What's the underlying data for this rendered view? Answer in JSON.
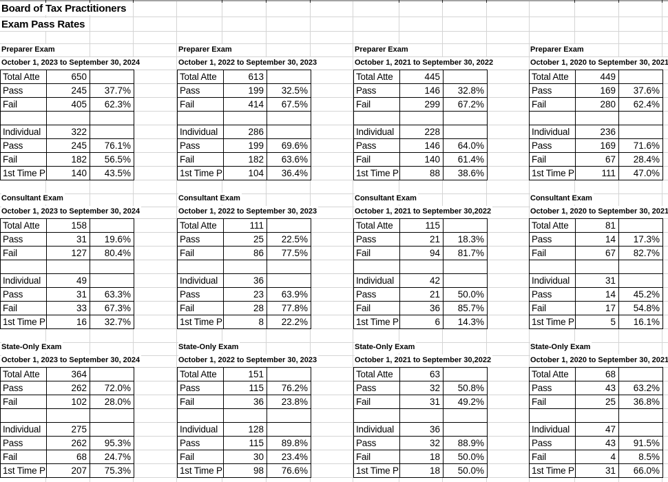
{
  "sheet_title": {
    "line1": "Board of Tax Practitioners",
    "line2": "Exam Pass Rates"
  },
  "colors": {
    "background": "#ffffff",
    "gridline": "#d4d4d4",
    "table_border": "#000000",
    "text": "#000000",
    "top_edge": "#a3a3a3"
  },
  "sections": [
    {
      "exam": "Preparer Exam",
      "period": "October 1, 2023 to September 30, 2024",
      "rows": [
        [
          "Total Atte",
          "650",
          ""
        ],
        [
          "Pass",
          "245",
          "37.7%"
        ],
        [
          "Fail",
          "405",
          "62.3%"
        ],
        [
          "",
          "",
          ""
        ],
        [
          "Individual",
          "322",
          ""
        ],
        [
          "Pass",
          "245",
          "76.1%"
        ],
        [
          "Fail",
          "182",
          "56.5%"
        ],
        [
          "1st Time P",
          "140",
          "43.5%"
        ]
      ]
    },
    {
      "exam": "Preparer Exam",
      "period": "October 1, 2022 to September 30, 2023",
      "rows": [
        [
          "Total Atte",
          "613",
          ""
        ],
        [
          "Pass",
          "199",
          "32.5%"
        ],
        [
          "Fail",
          "414",
          "67.5%"
        ],
        [
          "",
          "",
          ""
        ],
        [
          "Individual",
          "286",
          ""
        ],
        [
          "Pass",
          "199",
          "69.6%"
        ],
        [
          "Fail",
          "182",
          "63.6%"
        ],
        [
          "1st Time P",
          "104",
          "36.4%"
        ]
      ]
    },
    {
      "exam": "Preparer Exam",
      "period": "October 1, 2021 to September 30, 2022",
      "rows": [
        [
          "Total Atte",
          "445",
          ""
        ],
        [
          "Pass",
          "146",
          "32.8%"
        ],
        [
          "Fail",
          "299",
          "67.2%"
        ],
        [
          "",
          "",
          ""
        ],
        [
          "Individual",
          "228",
          ""
        ],
        [
          "Pass",
          "146",
          "64.0%"
        ],
        [
          "Fail",
          "140",
          "61.4%"
        ],
        [
          "1st Time P",
          "88",
          "38.6%"
        ]
      ]
    },
    {
      "exam": "Preparer Exam",
      "period": "October 1, 2020 to September 30, 2021",
      "rows": [
        [
          "Total Atte",
          "449",
          ""
        ],
        [
          "Pass",
          "169",
          "37.6%"
        ],
        [
          "Fail",
          "280",
          "62.4%"
        ],
        [
          "",
          "",
          ""
        ],
        [
          "Individual",
          "236",
          ""
        ],
        [
          "Pass",
          "169",
          "71.6%"
        ],
        [
          "Fail",
          "67",
          "28.4%"
        ],
        [
          "1st Time P",
          "111",
          "47.0%"
        ]
      ]
    },
    {
      "exam": "Consultant Exam",
      "period": "October 1, 2023 to September 30, 2024",
      "rows": [
        [
          "Total Atte",
          "158",
          ""
        ],
        [
          "Pass",
          "31",
          "19.6%"
        ],
        [
          "Fail",
          "127",
          "80.4%"
        ],
        [
          "",
          "",
          ""
        ],
        [
          "Individual",
          "49",
          ""
        ],
        [
          "Pass",
          "31",
          "63.3%"
        ],
        [
          "Fail",
          "33",
          "67.3%"
        ],
        [
          "1st Time P",
          "16",
          "32.7%"
        ]
      ]
    },
    {
      "exam": "Consultant Exam",
      "period": "October 1, 2022 to September 30, 2023",
      "rows": [
        [
          "Total Atte",
          "111",
          ""
        ],
        [
          "Pass",
          "25",
          "22.5%"
        ],
        [
          "Fail",
          "86",
          "77.5%"
        ],
        [
          "",
          "",
          ""
        ],
        [
          "Individual",
          "36",
          ""
        ],
        [
          "Pass",
          "23",
          "63.9%"
        ],
        [
          "Fail",
          "28",
          "77.8%"
        ],
        [
          "1st Time P",
          "8",
          "22.2%"
        ]
      ]
    },
    {
      "exam": "Consultant Exam",
      "period": "October 1, 2021 to September 30,2022",
      "rows": [
        [
          "Total Atte",
          "115",
          ""
        ],
        [
          "Pass",
          "21",
          "18.3%"
        ],
        [
          "Fail",
          "94",
          "81.7%"
        ],
        [
          "",
          "",
          ""
        ],
        [
          "Individual",
          "42",
          ""
        ],
        [
          "Pass",
          "21",
          "50.0%"
        ],
        [
          "Fail",
          "36",
          "85.7%"
        ],
        [
          "1st Time P",
          "6",
          "14.3%"
        ]
      ]
    },
    {
      "exam": "Consultant Exam",
      "period": "October 1, 2020 to September 30, 2021",
      "rows": [
        [
          "Total Atte",
          "81",
          ""
        ],
        [
          "Pass",
          "14",
          "17.3%"
        ],
        [
          "Fail",
          "67",
          "82.7%"
        ],
        [
          "",
          "",
          ""
        ],
        [
          "Individual",
          "31",
          ""
        ],
        [
          "Pass",
          "14",
          "45.2%"
        ],
        [
          "Fail",
          "17",
          "54.8%"
        ],
        [
          "1st Time P",
          "5",
          "16.1%"
        ]
      ]
    },
    {
      "exam": "State-Only Exam",
      "period": "October 1, 2023 to September 30, 2024",
      "rows": [
        [
          "Total Atte",
          "364",
          ""
        ],
        [
          "Pass",
          "262",
          "72.0%"
        ],
        [
          "Fail",
          "102",
          "28.0%"
        ],
        [
          "",
          "",
          ""
        ],
        [
          "Individual",
          "275",
          ""
        ],
        [
          "Pass",
          "262",
          "95.3%"
        ],
        [
          "Fail",
          "68",
          "24.7%"
        ],
        [
          "1st Time P",
          "207",
          "75.3%"
        ]
      ]
    },
    {
      "exam": "State-Only Exam",
      "period": "October 1, 2022 to September 30, 2023",
      "rows": [
        [
          "Total Atte",
          "151",
          ""
        ],
        [
          "Pass",
          "115",
          "76.2%"
        ],
        [
          "Fail",
          "36",
          "23.8%"
        ],
        [
          "",
          "",
          ""
        ],
        [
          "Individual",
          "128",
          ""
        ],
        [
          "Pass",
          "115",
          "89.8%"
        ],
        [
          "Fail",
          "30",
          "23.4%"
        ],
        [
          "1st Time P",
          "98",
          "76.6%"
        ]
      ]
    },
    {
      "exam": "State-Only Exam",
      "period": "October 1, 2021 to September 30,2022",
      "rows": [
        [
          "Total Atte",
          "63",
          ""
        ],
        [
          "Pass",
          "32",
          "50.8%"
        ],
        [
          "Fail",
          "31",
          "49.2%"
        ],
        [
          "",
          "",
          ""
        ],
        [
          "Individual",
          "36",
          ""
        ],
        [
          "Pass",
          "32",
          "88.9%"
        ],
        [
          "Fail",
          "18",
          "50.0%"
        ],
        [
          "1st Time P",
          "18",
          "50.0%"
        ]
      ]
    },
    {
      "exam": "State-Only Exam",
      "period": "October 1, 2020 to September 30, 2021",
      "rows": [
        [
          "Total Atte",
          "68",
          ""
        ],
        [
          "Pass",
          "43",
          "63.2%"
        ],
        [
          "Fail",
          "25",
          "36.8%"
        ],
        [
          "",
          "",
          ""
        ],
        [
          "Individual",
          "47",
          ""
        ],
        [
          "Pass",
          "43",
          "91.5%"
        ],
        [
          "Fail",
          "4",
          "8.5%"
        ],
        [
          "1st Time P",
          "31",
          "66.0%"
        ]
      ]
    }
  ]
}
